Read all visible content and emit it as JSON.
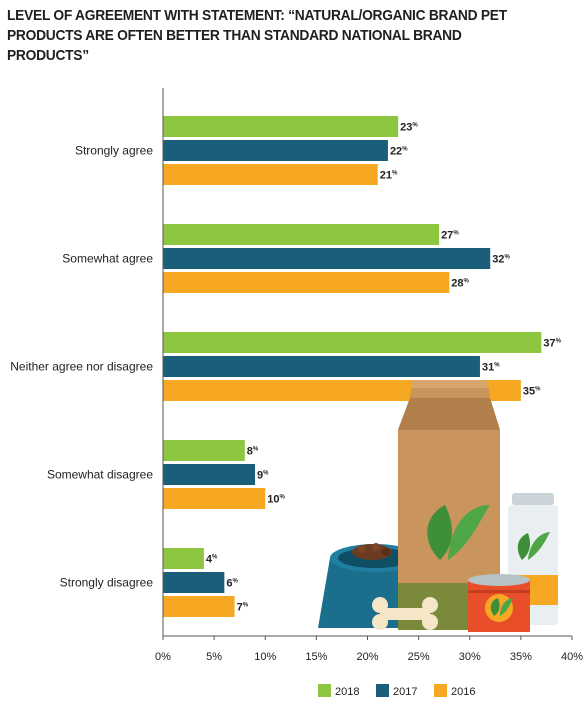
{
  "title": "LEVEL OF AGREEMENT WITH STATEMENT: “NATURAL/ORGANIC BRAND PET PRODUCTS ARE OFTEN BETTER THAN STANDARD NATIONAL BRAND PRODUCTS”",
  "chart_data": {
    "type": "bar",
    "orientation": "horizontal",
    "title": "LEVEL OF AGREEMENT WITH STATEMENT: “NATURAL/ORGANIC BRAND PET PRODUCTS ARE OFTEN BETTER THAN STANDARD NATIONAL BRAND PRODUCTS”",
    "categories": [
      "Strongly agree",
      "Somewhat agree",
      "Neither agree nor disagree",
      "Somewhat disagree",
      "Strongly disagree"
    ],
    "series": [
      {
        "name": "2018",
        "color": "#8dc63f",
        "values": [
          23,
          27,
          37,
          8,
          4
        ]
      },
      {
        "name": "2017",
        "color": "#1b5e7a",
        "values": [
          22,
          32,
          31,
          9,
          6
        ]
      },
      {
        "name": "2016",
        "color": "#f7a823",
        "values": [
          21,
          28,
          35,
          10,
          7
        ]
      }
    ],
    "value_suffix": "%",
    "xlim": [
      0,
      40
    ],
    "xticks": [
      "0%",
      "5%",
      "10%",
      "15%",
      "20%",
      "25%",
      "30%",
      "35%",
      "40%"
    ],
    "xlabel": "",
    "ylabel": "",
    "grid": false,
    "legend_position": "bottom-right"
  },
  "illustration": {
    "description_icons": [
      "pet-food-bag-icon",
      "pet-bowl-icon",
      "dog-bone-icon",
      "pet-food-can-icon",
      "supplement-bottle-icon"
    ],
    "colors": {
      "bag": "#c9955c",
      "bag_band": "#7a8a3a",
      "leaf": "#3f8f3a",
      "can": "#e94e2a",
      "bowl": "#1b6f8c",
      "bottle": "#e9eef0",
      "bottle_label": "#f7a823"
    }
  }
}
